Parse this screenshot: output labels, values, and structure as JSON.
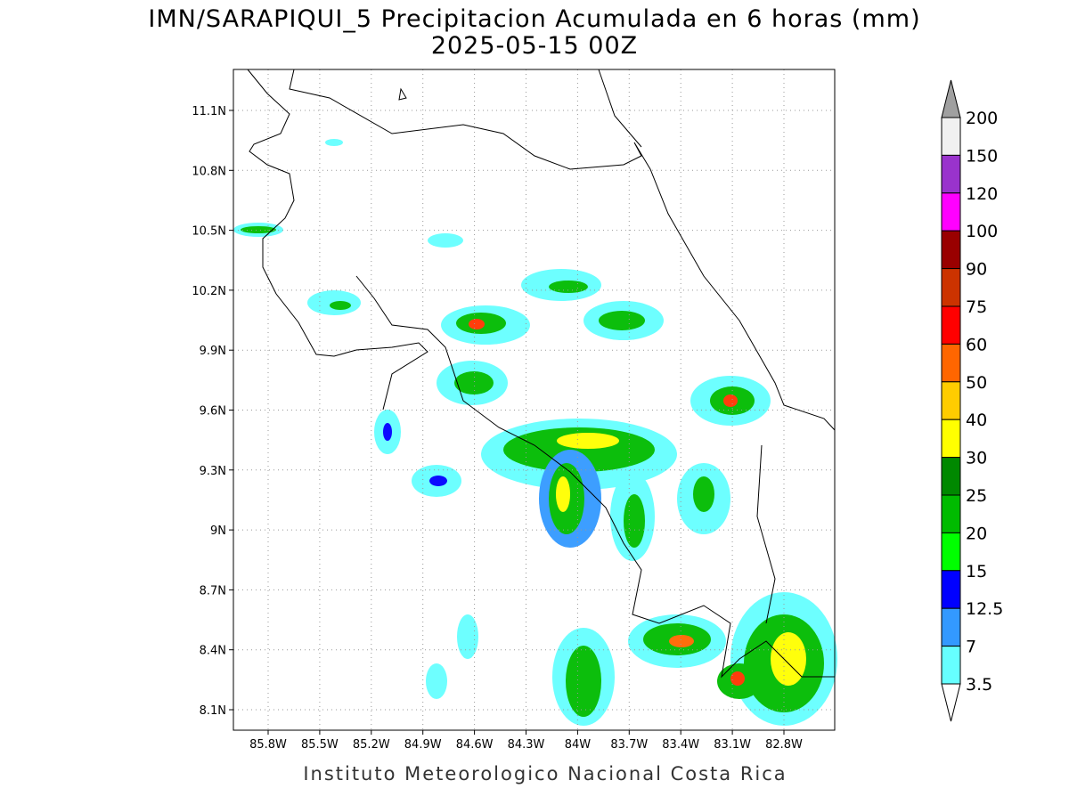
{
  "header": {
    "title": "IMN/SARAPIQUI_5 Precipitacion Acumulada en 6 horas (mm)",
    "subtitle": "2025-05-15 00Z"
  },
  "map": {
    "lon_labels": [
      "85.8W",
      "85.5W",
      "85.2W",
      "84.9W",
      "84.6W",
      "84.3W",
      "84W",
      "83.7W",
      "83.4W",
      "83.1W",
      "82.8W"
    ],
    "lat_labels": [
      "11.1N",
      "10.8N",
      "10.5N",
      "10.2N",
      "9.9N",
      "9.6N",
      "9.3N",
      "9N",
      "8.7N",
      "8.4N",
      "8.1N"
    ]
  },
  "colorbar": {
    "labels": [
      "200",
      "150",
      "120",
      "100",
      "90",
      "75",
      "60",
      "50",
      "40",
      "30",
      "25",
      "20",
      "15",
      "12.5",
      "7",
      "3.5"
    ],
    "over_color": "#a0a0a0",
    "colors": [
      "#f0f0f0",
      "#9933cc",
      "#ff00ff",
      "#990000",
      "#cc3300",
      "#ff0000",
      "#ff6600",
      "#ffcc00",
      "#ffff00",
      "#008800",
      "#00bb00",
      "#00ff00",
      "#0000ff",
      "#3399ff",
      "#66ffff"
    ],
    "under_color": "#ffffff"
  },
  "footer": "Instituto Meteorologico Nacional Costa Rica"
}
